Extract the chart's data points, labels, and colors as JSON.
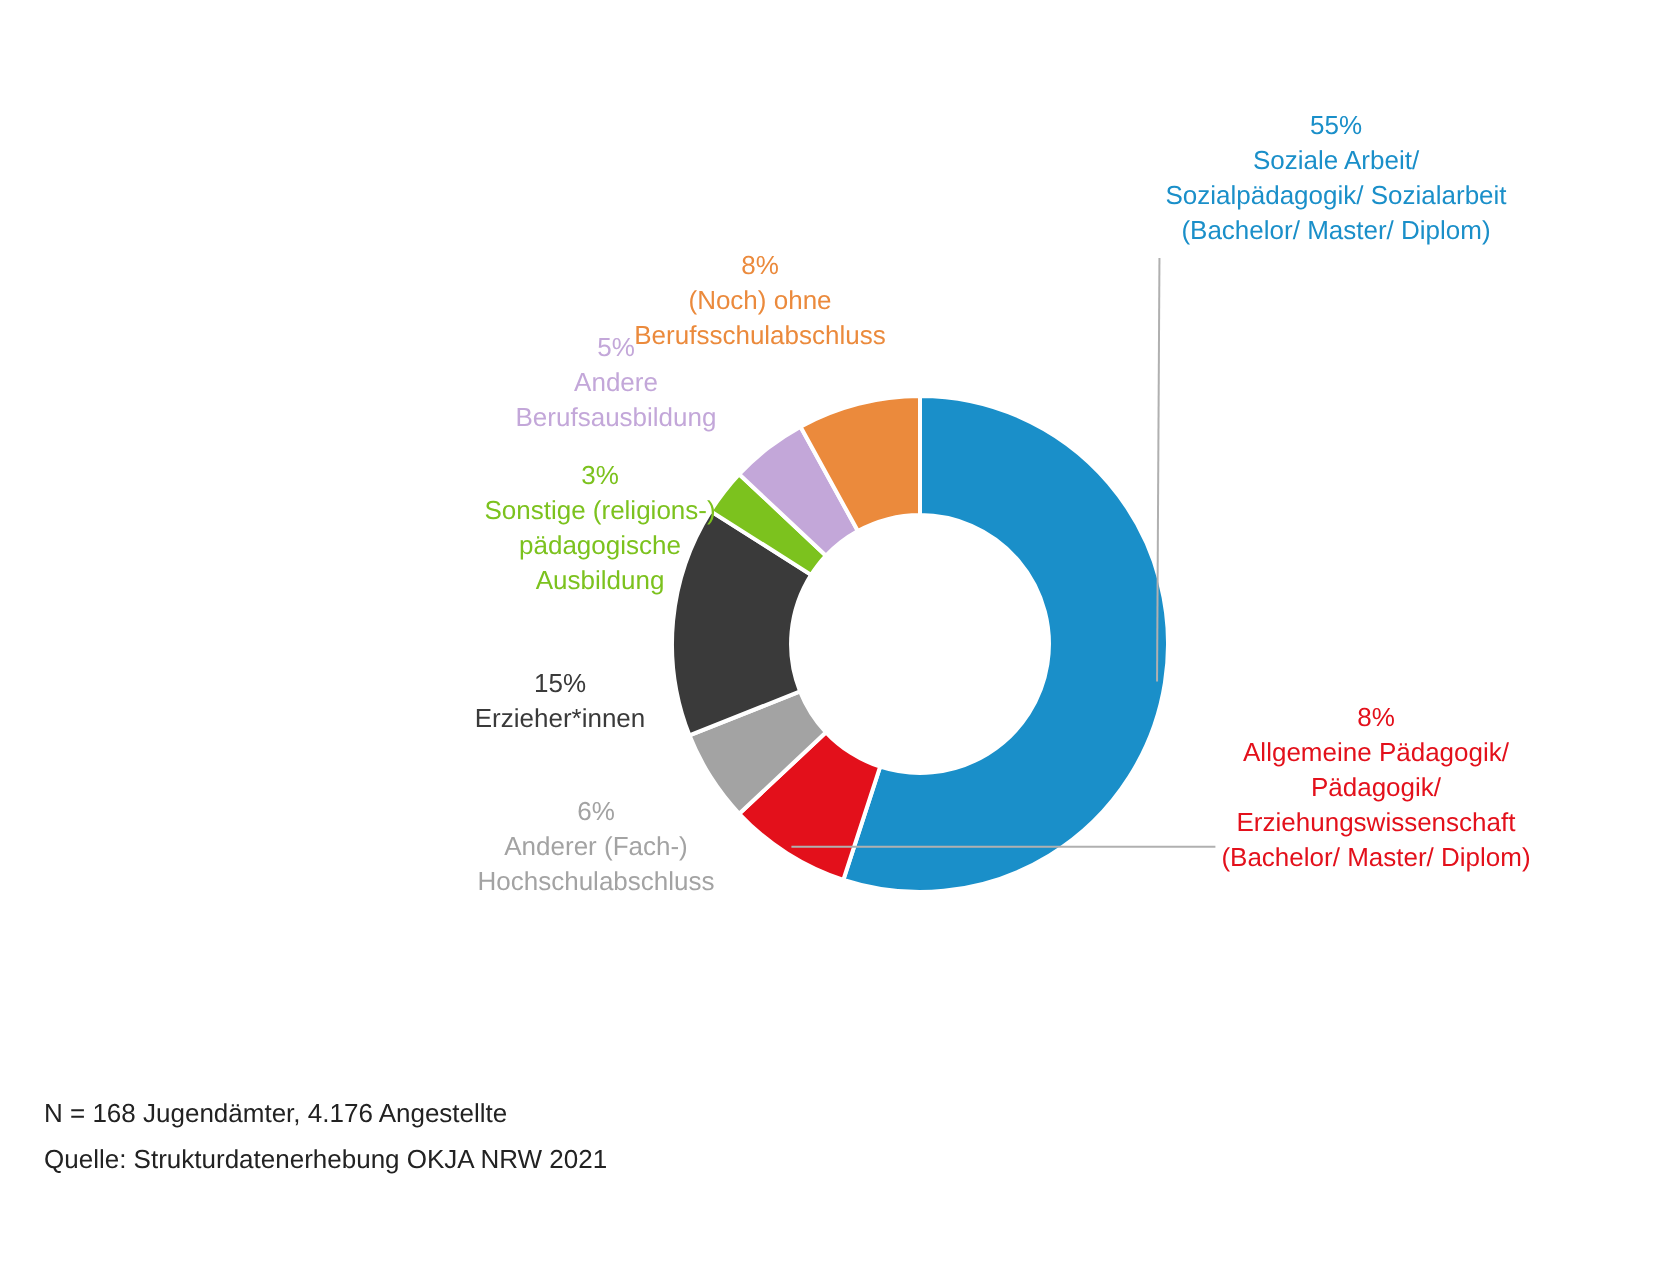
{
  "chart_data": {
    "type": "donut",
    "categories": [
      "Soziale Arbeit/ Sozialpädagogik/ Sozialarbeit (Bachelor/ Master/ Diplom)",
      "Allgemeine Pädagogik/ Pädagogik/ Erziehungswissenschaft (Bachelor/ Master/ Diplom)",
      "Anderer (Fach-) Hochschulabschluss",
      "Erzieher*innen",
      "Sonstige (religions-) pädagogische Ausbildung",
      "Andere Berufsausbildung",
      "(Noch) ohne Berufsschulabschluss"
    ],
    "values": [
      55,
      8,
      6,
      15,
      3,
      5,
      8
    ],
    "colors": [
      "#1a8fc9",
      "#e3101b",
      "#a3a3a3",
      "#3a3a3a",
      "#7cc21e",
      "#c3a7d9",
      "#eb8a3c"
    ],
    "value_labels": [
      "55%",
      "8%",
      "6%",
      "15%",
      "3%",
      "5%",
      "8%"
    ],
    "legend": false,
    "annotations": [
      "N = 168 Jugendämter, 4.176 Angestellte",
      "Quelle: Strukturdatenerhebung OKJA NRW 2021"
    ]
  }
}
